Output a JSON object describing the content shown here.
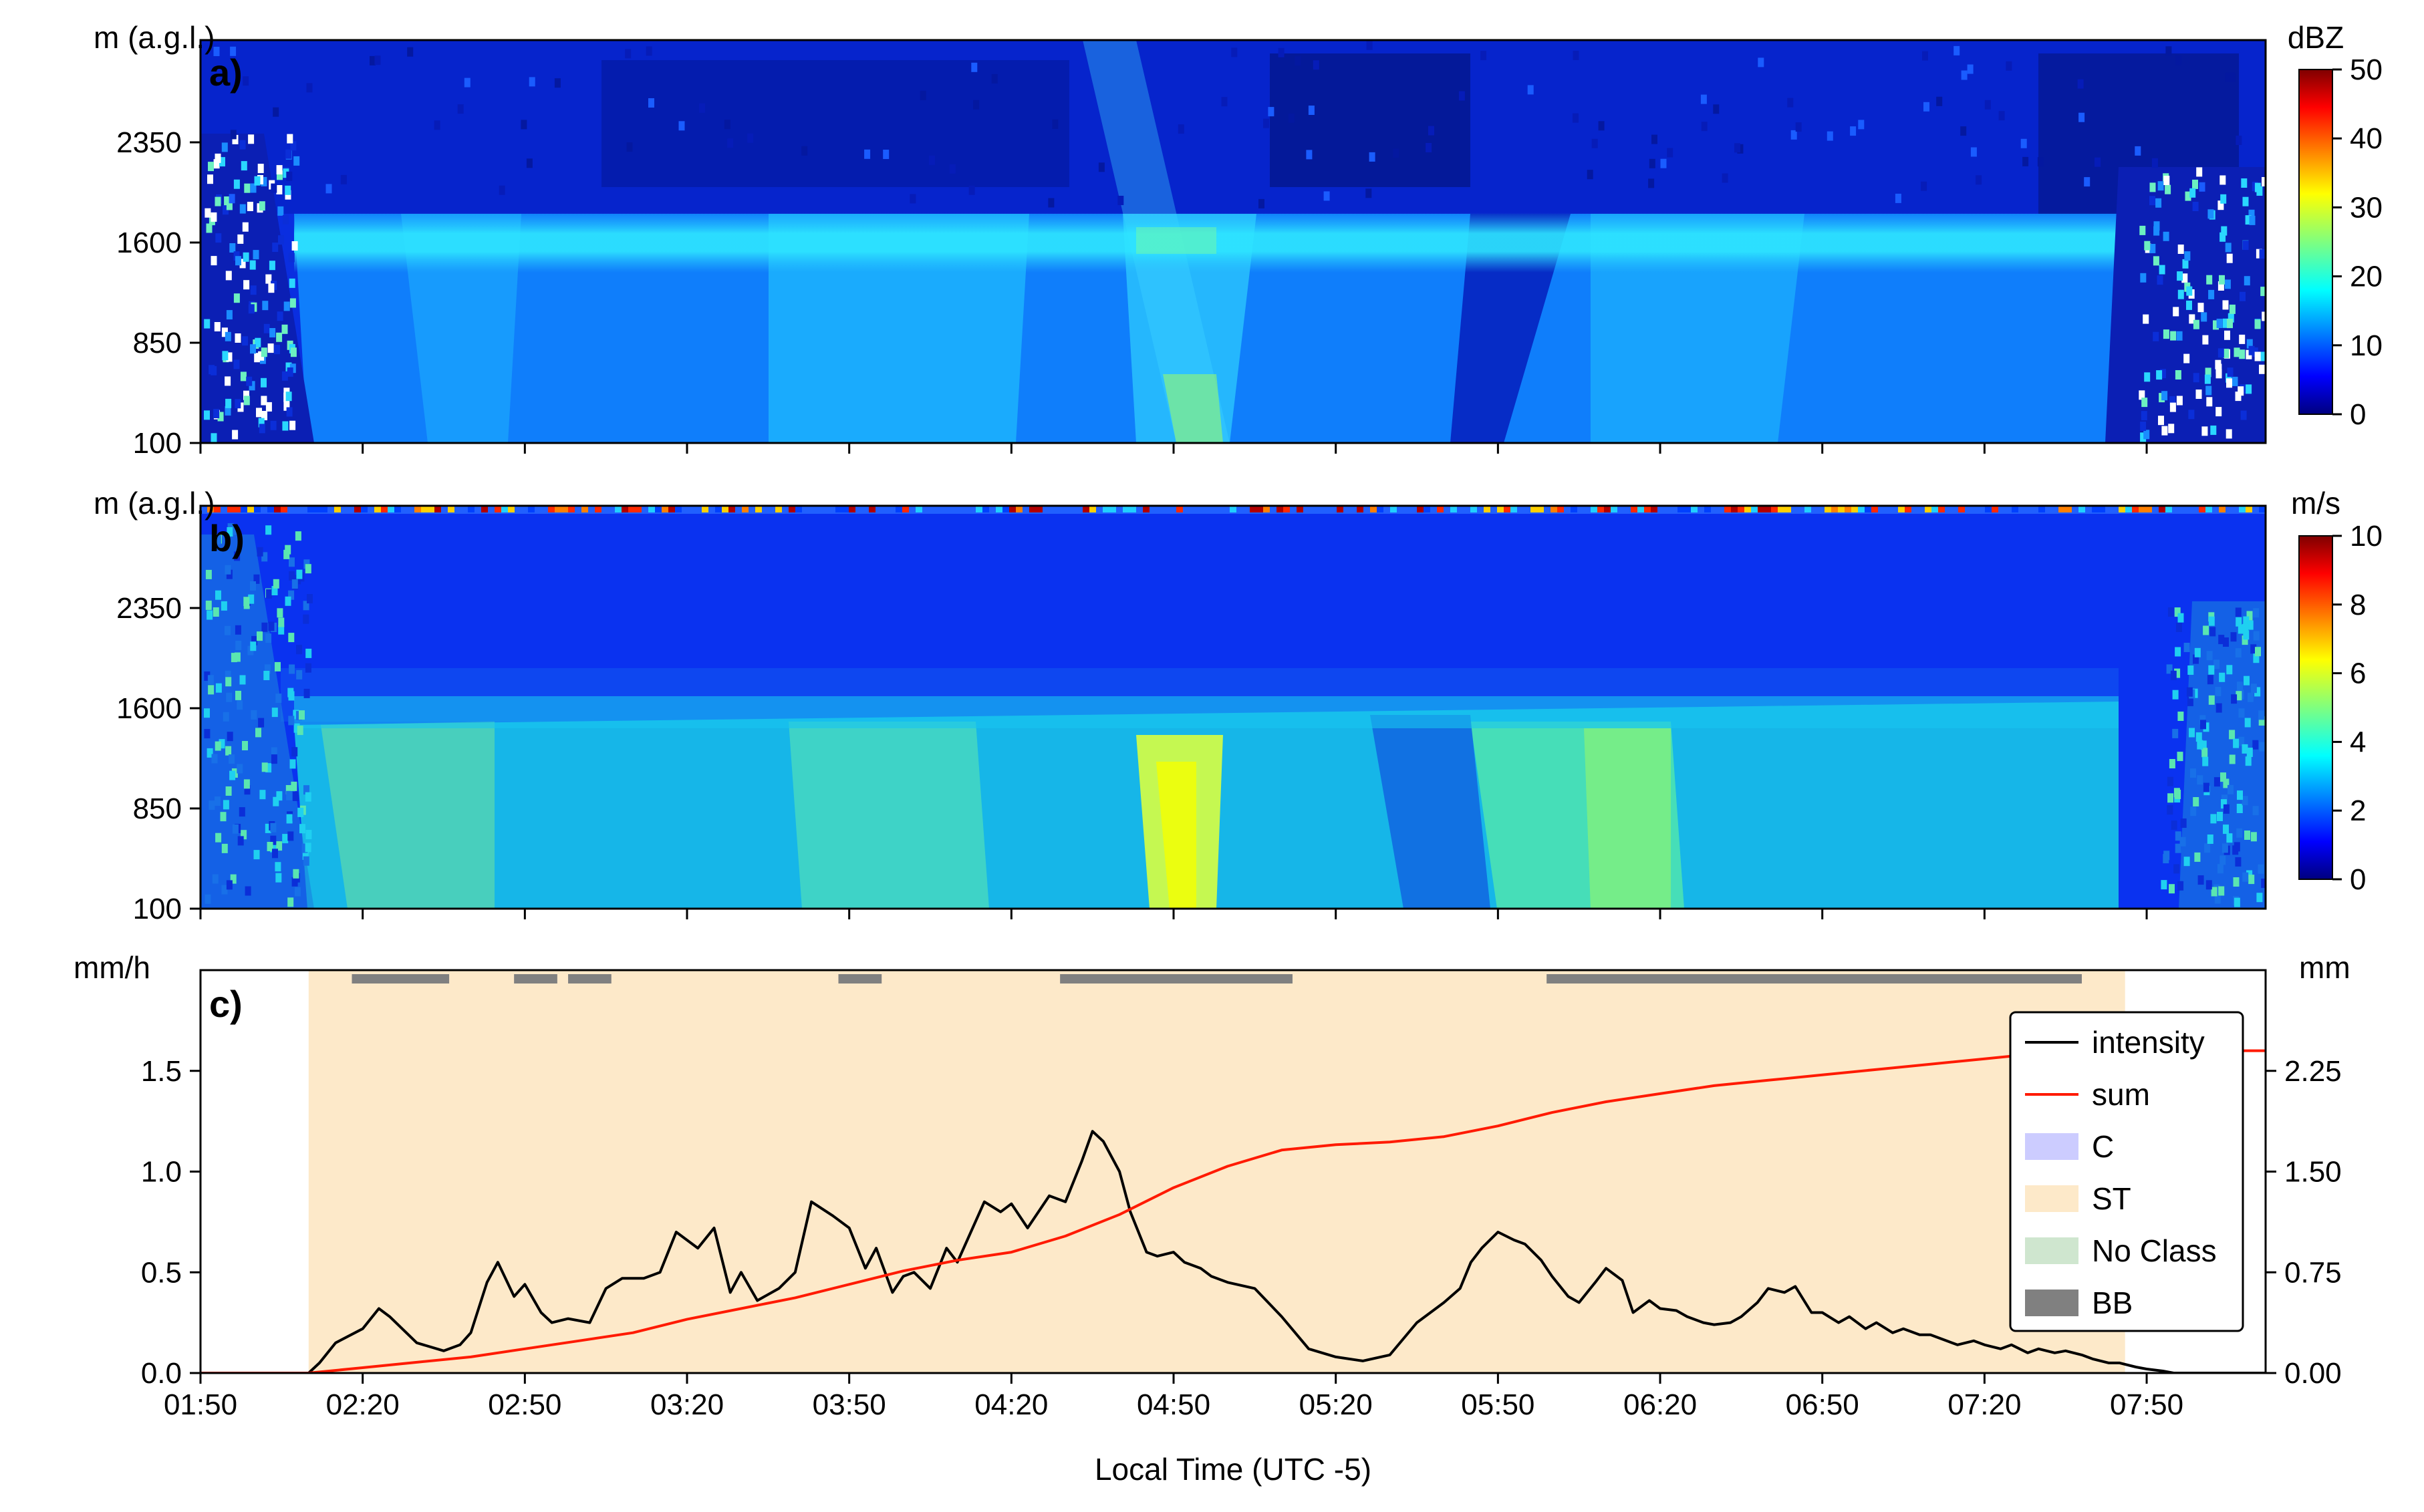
{
  "chart_data": [
    {
      "panel": "a)",
      "type": "heatmap",
      "ylabel": "m (a.g.l.)",
      "yticks": [
        "2350",
        "1600",
        "850",
        "100"
      ],
      "ylim": [
        100,
        3000
      ],
      "colorbar": {
        "unit": "dBZ",
        "range": [
          0,
          50
        ],
        "ticks": [
          "50",
          "40",
          "30",
          "20",
          "10",
          "0"
        ]
      },
      "melting_layer_height_m": 1550,
      "precip_start": "02:10",
      "precip_end": "07:46"
    },
    {
      "panel": "b)",
      "type": "heatmap",
      "ylabel": "m (a.g.l.)",
      "yticks": [
        "2350",
        "1600",
        "850",
        "100"
      ],
      "ylim": [
        100,
        3000
      ],
      "colorbar": {
        "unit": "m/s",
        "range": [
          0,
          10
        ],
        "ticks": [
          "10",
          "8",
          "6",
          "4",
          "2",
          "0"
        ]
      },
      "melting_layer_height_m": 1500
    },
    {
      "panel": "c)",
      "type": "line",
      "ylabel_left": "mm/h",
      "ylabel_right": "mm",
      "xlabel": "Local Time (UTC -5)",
      "xticks": [
        "01:50",
        "02:20",
        "02:50",
        "03:20",
        "03:50",
        "04:20",
        "04:50",
        "05:20",
        "05:50",
        "06:20",
        "06:50",
        "07:20",
        "07:50"
      ],
      "xlim_minutes": [
        0,
        382
      ],
      "ylim_left": [
        0,
        2.0
      ],
      "ylim_right": [
        0,
        3.0
      ],
      "yticks_left": [
        "0.0",
        "0.5",
        "1.0",
        "1.5"
      ],
      "yticks_right": [
        "0.00",
        "0.75",
        "1.50",
        "2.25"
      ],
      "series": [
        {
          "name": "intensity",
          "color": "#000000",
          "axis": "left",
          "x_minutes": [
            0,
            20,
            22,
            25,
            30,
            33,
            35,
            40,
            45,
            48,
            50,
            53,
            55,
            58,
            60,
            63,
            65,
            68,
            72,
            75,
            78,
            82,
            85,
            88,
            92,
            95,
            98,
            100,
            103,
            107,
            110,
            113,
            117,
            120,
            123,
            125,
            128,
            130,
            132,
            135,
            138,
            140,
            145,
            148,
            150,
            153,
            157,
            160,
            163,
            165,
            167,
            170,
            172,
            175,
            177,
            180,
            182,
            185,
            187,
            190,
            195,
            200,
            205,
            210,
            215,
            220,
            225,
            230,
            233,
            235,
            237,
            240,
            243,
            245,
            248,
            250,
            253,
            255,
            258,
            260,
            263,
            265,
            268,
            270,
            273,
            275,
            278,
            280,
            283,
            285,
            288,
            290,
            293,
            295,
            298,
            300,
            303,
            305,
            308,
            310,
            313,
            315,
            318,
            320,
            323,
            325,
            328,
            330,
            333,
            335,
            338,
            340,
            343,
            345,
            348,
            350,
            353,
            355,
            358,
            360,
            363,
            365,
            367,
            370,
            382
          ],
          "values": [
            0.0,
            0.0,
            0.05,
            0.15,
            0.22,
            0.32,
            0.28,
            0.15,
            0.11,
            0.14,
            0.2,
            0.45,
            0.55,
            0.38,
            0.44,
            0.3,
            0.25,
            0.27,
            0.25,
            0.42,
            0.47,
            0.47,
            0.5,
            0.7,
            0.62,
            0.72,
            0.4,
            0.5,
            0.36,
            0.42,
            0.5,
            0.85,
            0.78,
            0.72,
            0.52,
            0.62,
            0.4,
            0.48,
            0.5,
            0.42,
            0.62,
            0.55,
            0.85,
            0.8,
            0.84,
            0.72,
            0.88,
            0.85,
            1.05,
            1.2,
            1.15,
            1.0,
            0.8,
            0.6,
            0.58,
            0.6,
            0.55,
            0.52,
            0.48,
            0.45,
            0.42,
            0.28,
            0.12,
            0.08,
            0.06,
            0.09,
            0.25,
            0.35,
            0.42,
            0.55,
            0.62,
            0.7,
            0.66,
            0.64,
            0.56,
            0.48,
            0.38,
            0.35,
            0.45,
            0.52,
            0.46,
            0.3,
            0.36,
            0.32,
            0.31,
            0.28,
            0.25,
            0.24,
            0.25,
            0.28,
            0.35,
            0.42,
            0.4,
            0.43,
            0.3,
            0.3,
            0.25,
            0.28,
            0.22,
            0.25,
            0.2,
            0.22,
            0.19,
            0.19,
            0.16,
            0.14,
            0.16,
            0.14,
            0.12,
            0.14,
            0.1,
            0.12,
            0.1,
            0.11,
            0.09,
            0.07,
            0.05,
            0.05,
            0.03,
            0.02,
            0.01,
            0.0,
            0.0,
            0.0,
            0.0
          ]
        },
        {
          "name": "sum",
          "color": "#ff1a00",
          "axis": "right",
          "x_minutes": [
            0,
            20,
            30,
            40,
            50,
            60,
            70,
            80,
            90,
            100,
            110,
            120,
            130,
            140,
            150,
            160,
            170,
            180,
            190,
            200,
            210,
            220,
            230,
            240,
            250,
            260,
            270,
            280,
            290,
            300,
            310,
            320,
            330,
            340,
            350,
            360,
            370,
            382
          ],
          "values": [
            0.0,
            0.0,
            0.04,
            0.08,
            0.12,
            0.18,
            0.24,
            0.3,
            0.4,
            0.48,
            0.56,
            0.66,
            0.76,
            0.84,
            0.9,
            1.02,
            1.18,
            1.38,
            1.54,
            1.66,
            1.7,
            1.72,
            1.76,
            1.84,
            1.94,
            2.02,
            2.08,
            2.14,
            2.18,
            2.22,
            2.26,
            2.3,
            2.34,
            2.38,
            2.4,
            2.4,
            2.4,
            2.4
          ]
        }
      ],
      "classification": [
        {
          "label": "ST",
          "start_minutes": 20,
          "end_minutes": 356
        }
      ],
      "bright_band_segments": [
        [
          28,
          46
        ],
        [
          58,
          66
        ],
        [
          68,
          76
        ],
        [
          118,
          126
        ],
        [
          159,
          202
        ],
        [
          249,
          348
        ]
      ],
      "legend": {
        "position": "top-right",
        "entries": [
          {
            "label": "intensity",
            "kind": "line",
            "color": "#000000"
          },
          {
            "label": "sum",
            "kind": "line",
            "color": "#ff1a00"
          },
          {
            "label": "C",
            "kind": "patch",
            "color": "#ccccff"
          },
          {
            "label": "ST",
            "kind": "patch",
            "color": "#fde9c9"
          },
          {
            "label": "No Class",
            "kind": "patch",
            "color": "#cfe6cf"
          },
          {
            "label": "BB",
            "kind": "patch",
            "color": "#808080"
          }
        ]
      }
    }
  ]
}
